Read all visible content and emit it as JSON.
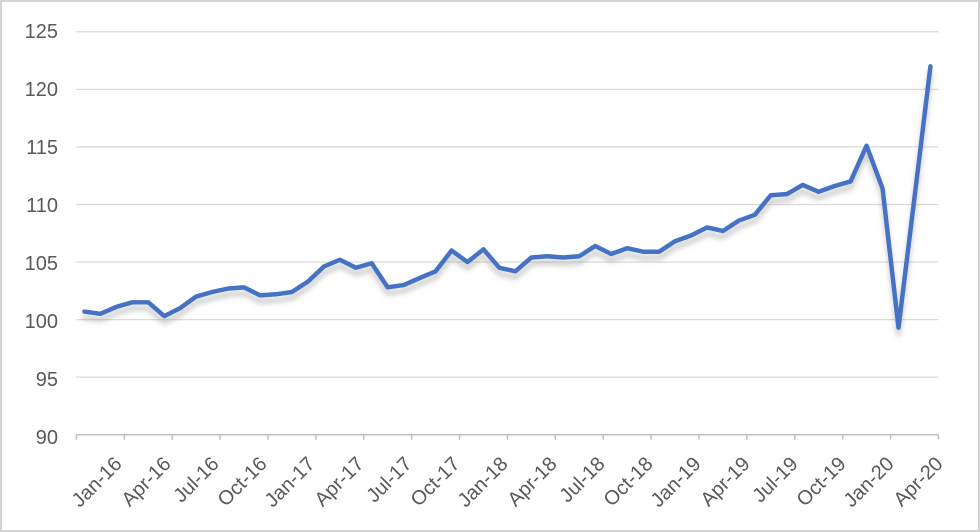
{
  "chart_data": {
    "type": "line",
    "title": "",
    "xlabel": "",
    "ylabel": "",
    "x": [
      "Jan-16",
      "Feb-16",
      "Mar-16",
      "Apr-16",
      "May-16",
      "Jun-16",
      "Jul-16",
      "Aug-16",
      "Sep-16",
      "Oct-16",
      "Nov-16",
      "Dec-16",
      "Jan-17",
      "Feb-17",
      "Mar-17",
      "Apr-17",
      "May-17",
      "Jun-17",
      "Jul-17",
      "Aug-17",
      "Sep-17",
      "Oct-17",
      "Nov-17",
      "Dec-17",
      "Jan-18",
      "Feb-18",
      "Mar-18",
      "Apr-18",
      "May-18",
      "Jun-18",
      "Jul-18",
      "Aug-18",
      "Sep-18",
      "Oct-18",
      "Nov-18",
      "Dec-18",
      "Jan-19",
      "Feb-19",
      "Mar-19",
      "Apr-19",
      "May-19",
      "Jun-19",
      "Jul-19",
      "Aug-19",
      "Sep-19",
      "Oct-19",
      "Nov-19",
      "Dec-19",
      "Jan-20",
      "Feb-20",
      "Mar-20",
      "Apr-20",
      "May-20",
      "Jun-20"
    ],
    "values": [
      100.7,
      100.5,
      101.1,
      101.5,
      101.5,
      100.3,
      101.0,
      102.0,
      102.4,
      102.7,
      102.8,
      102.1,
      102.2,
      102.4,
      103.3,
      104.6,
      105.2,
      104.5,
      104.9,
      102.8,
      103.0,
      103.6,
      104.2,
      106.0,
      105.0,
      106.1,
      104.5,
      104.2,
      105.4,
      105.5,
      105.4,
      105.5,
      106.4,
      105.7,
      106.2,
      105.9,
      105.9,
      106.8,
      107.3,
      108.0,
      107.7,
      108.6,
      109.1,
      110.8,
      110.9,
      111.7,
      111.1,
      111.6,
      112.0,
      115.1,
      111.4,
      99.3,
      110.6,
      122.0
    ],
    "x_tick_labels": [
      "Jan-16",
      "Apr-16",
      "Jul-16",
      "Oct-16",
      "Jan-17",
      "Apr-17",
      "Jul-17",
      "Oct-17",
      "Jan-18",
      "Apr-18",
      "Jul-18",
      "Oct-18",
      "Jan-19",
      "Apr-19",
      "Jul-19",
      "Oct-19",
      "Jan-20",
      "Apr-20"
    ],
    "y_ticks": [
      90,
      95,
      100,
      105,
      110,
      115,
      120,
      125
    ],
    "ylim": [
      90,
      125
    ],
    "grid": "horizontal",
    "legend": "none",
    "line_color": "#4472C4",
    "gridline_color": "#D9D9D9",
    "axis_line_color": "#BFBFBF",
    "label_color": "#595959"
  }
}
